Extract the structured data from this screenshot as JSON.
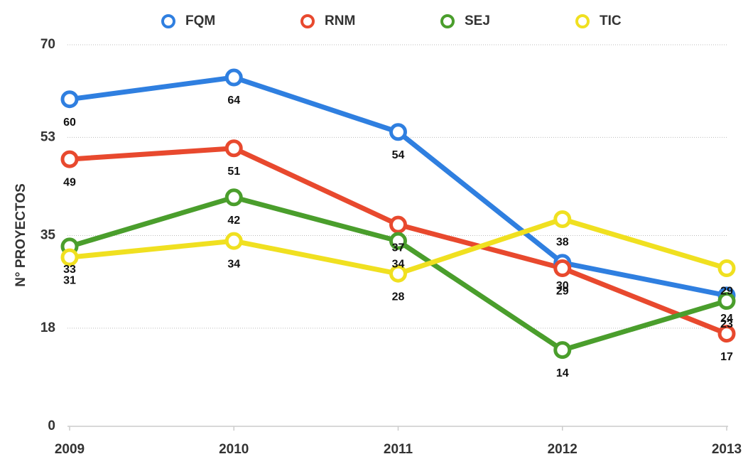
{
  "chart_data": {
    "type": "line",
    "y_label": "N° PROYECTOS",
    "categories": [
      "2009",
      "2010",
      "2011",
      "2012",
      "2013"
    ],
    "series": [
      {
        "name": "FQM",
        "color": "#2f7fe0",
        "values": [
          60,
          64,
          54,
          30,
          24
        ]
      },
      {
        "name": "RNM",
        "color": "#e8492e",
        "values": [
          49,
          51,
          37,
          29,
          17
        ]
      },
      {
        "name": "SEJ",
        "color": "#4a9e2c",
        "values": [
          33,
          42,
          34,
          14,
          23
        ]
      },
      {
        "name": "TIC",
        "color": "#f0e020",
        "values": [
          31,
          34,
          28,
          38,
          29
        ]
      }
    ],
    "ylim": [
      0,
      70
    ],
    "yticks": [
      0,
      18,
      35,
      53,
      70
    ],
    "grid": true,
    "legend": "top"
  }
}
